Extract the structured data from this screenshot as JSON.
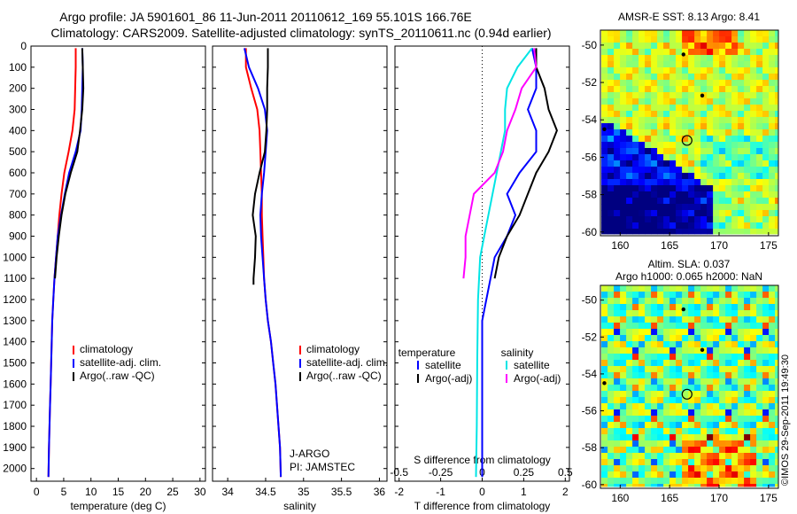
{
  "header": {
    "line1": "Argo profile: JA 5901601_86 11-Jun-2011 20110612_169 55.101S 166.76E",
    "line2": "Climatology: CARS2009. Satellite-adjusted climatology: synTS_20110611.nc (0.94d earlier)"
  },
  "colors": {
    "climatology": "#ff0000",
    "satellite": "#0000ff",
    "argo": "#000000",
    "sat_sal": "#00e5e5",
    "argo_sal": "#ff00ff"
  },
  "depth_ticks": [
    "0",
    "100",
    "200",
    "300",
    "400",
    "500",
    "600",
    "700",
    "800",
    "900",
    "1000",
    "1100",
    "1200",
    "1300",
    "1400",
    "1500",
    "1600",
    "1700",
    "1800",
    "1900",
    "2000"
  ],
  "chart_data": [
    {
      "type": "line",
      "xlabel": "temperature (deg C)",
      "xlim": [
        -1,
        31
      ],
      "ylim": [
        2060,
        0
      ],
      "x_ticks": [
        "0",
        "5",
        "10",
        "15",
        "20",
        "25",
        "30"
      ],
      "legend": [
        "climatology",
        "satellite-adj. clim.",
        "Argo(..raw -QC)"
      ],
      "series": [
        {
          "name": "climatology",
          "color": "#ff0000",
          "points": [
            [
              7.2,
              10
            ],
            [
              7.2,
              100
            ],
            [
              7.1,
              200
            ],
            [
              7.0,
              300
            ],
            [
              6.6,
              400
            ],
            [
              5.9,
              500
            ],
            [
              5.1,
              600
            ],
            [
              4.6,
              700
            ],
            [
              4.2,
              800
            ],
            [
              3.9,
              900
            ],
            [
              3.6,
              1000
            ],
            [
              3.3,
              1100
            ],
            [
              3.1,
              1200
            ],
            [
              2.9,
              1300
            ],
            [
              2.8,
              1400
            ],
            [
              2.7,
              1500
            ],
            [
              2.6,
              1600
            ],
            [
              2.5,
              1700
            ],
            [
              2.4,
              1800
            ],
            [
              2.3,
              1900
            ],
            [
              2.2,
              2040
            ]
          ]
        },
        {
          "name": "satellite-adj. clim.",
          "color": "#0000ff",
          "points": [
            [
              8.4,
              10
            ],
            [
              8.5,
              100
            ],
            [
              8.4,
              200
            ],
            [
              8.3,
              300
            ],
            [
              8.1,
              400
            ],
            [
              7.2,
              500
            ],
            [
              6.0,
              600
            ],
            [
              5.2,
              700
            ],
            [
              4.5,
              800
            ],
            [
              3.9,
              900
            ],
            [
              3.6,
              1000
            ],
            [
              3.3,
              1100
            ],
            [
              3.1,
              1200
            ],
            [
              2.9,
              1300
            ],
            [
              2.8,
              1400
            ],
            [
              2.7,
              1500
            ],
            [
              2.6,
              1600
            ],
            [
              2.5,
              1700
            ],
            [
              2.4,
              1800
            ],
            [
              2.3,
              1900
            ],
            [
              2.2,
              2040
            ]
          ]
        },
        {
          "name": "Argo(..raw -QC)",
          "color": "#000000",
          "points": [
            [
              8.4,
              10
            ],
            [
              8.5,
              100
            ],
            [
              8.6,
              200
            ],
            [
              8.4,
              300
            ],
            [
              8.0,
              400
            ],
            [
              7.5,
              500
            ],
            [
              6.3,
              600
            ],
            [
              5.3,
              700
            ],
            [
              4.6,
              800
            ],
            [
              4.1,
              900
            ],
            [
              3.7,
              1000
            ],
            [
              3.4,
              1100
            ]
          ]
        }
      ]
    },
    {
      "type": "line",
      "xlabel": "salinity",
      "xlim": [
        33.8,
        36.1
      ],
      "ylim": [
        2060,
        0
      ],
      "x_ticks": [
        "34",
        "34.5",
        "35",
        "35.5",
        "36"
      ],
      "legend": [
        "climatology",
        "satellite-adj. clim.",
        "Argo(..raw -QC)"
      ],
      "annotations": [
        "J-ARGO",
        "PI: JAMSTEC"
      ],
      "series": [
        {
          "name": "climatology",
          "color": "#ff0000",
          "points": [
            [
              34.24,
              10
            ],
            [
              34.24,
              100
            ],
            [
              34.31,
              200
            ],
            [
              34.39,
              300
            ],
            [
              34.42,
              400
            ],
            [
              34.43,
              500
            ],
            [
              34.44,
              600
            ],
            [
              34.45,
              700
            ],
            [
              34.45,
              800
            ],
            [
              34.46,
              900
            ],
            [
              34.47,
              1000
            ],
            [
              34.48,
              1100
            ],
            [
              34.5,
              1200
            ],
            [
              34.53,
              1300
            ],
            [
              34.57,
              1400
            ],
            [
              34.6,
              1500
            ],
            [
              34.63,
              1600
            ],
            [
              34.65,
              1700
            ],
            [
              34.67,
              1800
            ],
            [
              34.69,
              1900
            ],
            [
              34.7,
              2040
            ]
          ]
        },
        {
          "name": "satellite-adj. clim.",
          "color": "#0000ff",
          "points": [
            [
              34.22,
              10
            ],
            [
              34.28,
              100
            ],
            [
              34.4,
              200
            ],
            [
              34.49,
              300
            ],
            [
              34.52,
              400
            ],
            [
              34.5,
              500
            ],
            [
              34.48,
              600
            ],
            [
              34.45,
              700
            ],
            [
              34.43,
              800
            ],
            [
              34.44,
              900
            ],
            [
              34.46,
              1000
            ],
            [
              34.48,
              1100
            ],
            [
              34.5,
              1200
            ],
            [
              34.53,
              1300
            ],
            [
              34.57,
              1400
            ],
            [
              34.6,
              1500
            ],
            [
              34.63,
              1600
            ],
            [
              34.65,
              1700
            ],
            [
              34.67,
              1800
            ],
            [
              34.69,
              1900
            ],
            [
              34.7,
              2040
            ]
          ]
        },
        {
          "name": "Argo(..raw -QC)",
          "color": "#000000",
          "points": [
            [
              34.53,
              10
            ],
            [
              34.53,
              100
            ],
            [
              34.52,
              200
            ],
            [
              34.52,
              300
            ],
            [
              34.51,
              400
            ],
            [
              34.49,
              500
            ],
            [
              34.42,
              600
            ],
            [
              34.36,
              700
            ],
            [
              34.33,
              800
            ],
            [
              34.37,
              900
            ],
            [
              34.36,
              1000
            ],
            [
              34.34,
              1100
            ],
            [
              34.34,
              1130
            ]
          ]
        }
      ]
    },
    {
      "type": "line",
      "xlabel": "T difference from climatology",
      "xlabel_top": "S difference from climatology",
      "xlim": [
        -2.1,
        2.1
      ],
      "ylim": [
        2060,
        0
      ],
      "x_ticks": [
        "-2",
        "-1",
        "0",
        "1",
        "2"
      ],
      "x_ticks_top": [
        "-0.5",
        "-0.25",
        "0",
        "0.25",
        "0.5"
      ],
      "legend_groups": [
        {
          "title": "temperature",
          "items": [
            "satellite",
            "Argo(-adj)"
          ]
        },
        {
          "title": "salinity",
          "items": [
            "satellite",
            "Argo(-adj)"
          ]
        }
      ],
      "series": [
        {
          "name": "temperature satellite",
          "color": "#0000ff",
          "points": [
            [
              1.2,
              10
            ],
            [
              1.3,
              100
            ],
            [
              1.3,
              200
            ],
            [
              1.1,
              300
            ],
            [
              1.3,
              400
            ],
            [
              1.3,
              500
            ],
            [
              0.9,
              600
            ],
            [
              0.6,
              700
            ],
            [
              0.8,
              800
            ],
            [
              0.6,
              900
            ],
            [
              0.3,
              1000
            ],
            [
              0.2,
              1100
            ],
            [
              0.1,
              1200
            ],
            [
              0.0,
              1300
            ],
            [
              0.0,
              1500
            ],
            [
              0.0,
              1800
            ],
            [
              0.0,
              2040
            ]
          ]
        },
        {
          "name": "temperature Argo(-adj)",
          "color": "#000000",
          "points": [
            [
              1.3,
              10
            ],
            [
              1.3,
              100
            ],
            [
              1.5,
              200
            ],
            [
              1.6,
              300
            ],
            [
              1.8,
              400
            ],
            [
              1.6,
              500
            ],
            [
              1.3,
              600
            ],
            [
              1.1,
              700
            ],
            [
              0.9,
              800
            ],
            [
              0.6,
              900
            ],
            [
              0.4,
              1000
            ],
            [
              0.3,
              1100
            ]
          ]
        },
        {
          "name": "salinity satellite",
          "color": "#00e5e5",
          "points": [
            [
              1.2,
              10
            ],
            [
              0.85,
              100
            ],
            [
              0.6,
              200
            ],
            [
              0.55,
              300
            ],
            [
              0.55,
              400
            ],
            [
              0.45,
              500
            ],
            [
              0.35,
              600
            ],
            [
              0.25,
              700
            ],
            [
              0.15,
              800
            ],
            [
              0.05,
              900
            ],
            [
              -0.05,
              1000
            ],
            [
              -0.1,
              1200
            ],
            [
              -0.12,
              1500
            ],
            [
              -0.13,
              1800
            ],
            [
              -0.15,
              2040
            ]
          ]
        },
        {
          "name": "salinity Argo(-adj)",
          "color": "#ff00ff",
          "points": [
            [
              1.25,
              10
            ],
            [
              1.3,
              100
            ],
            [
              0.95,
              200
            ],
            [
              0.8,
              300
            ],
            [
              0.6,
              400
            ],
            [
              0.5,
              500
            ],
            [
              0.3,
              600
            ],
            [
              -0.2,
              700
            ],
            [
              -0.3,
              800
            ],
            [
              -0.4,
              900
            ],
            [
              -0.4,
              1000
            ],
            [
              -0.45,
              1100
            ]
          ]
        }
      ]
    },
    {
      "type": "heatmap",
      "title": "AMSR-E SST: 8.13 Argo: 8.41",
      "x_ticks": [
        "160",
        "165",
        "170",
        "175"
      ],
      "y_ticks": [
        "-50",
        "-52",
        "-54",
        "-56",
        "-58",
        "-60"
      ],
      "xlim": [
        158,
        176
      ],
      "ylim": [
        -60.2,
        -49.2
      ],
      "marker": {
        "lon": 166.76,
        "lat": -55.1
      }
    },
    {
      "type": "heatmap",
      "title": "Altim. SLA: 0.037",
      "subtitle": "Argo h1000: 0.065 h2000: NaN",
      "x_ticks": [
        "160",
        "165",
        "170",
        "175"
      ],
      "y_ticks": [
        "-50",
        "-52",
        "-54",
        "-56",
        "-58",
        "-60"
      ],
      "xlim": [
        158,
        176
      ],
      "ylim": [
        -60.2,
        -49.2
      ],
      "marker": {
        "lon": 166.76,
        "lat": -55.1
      }
    }
  ],
  "watermark": "©IMOS 29-Sep-2011 19:49:30"
}
